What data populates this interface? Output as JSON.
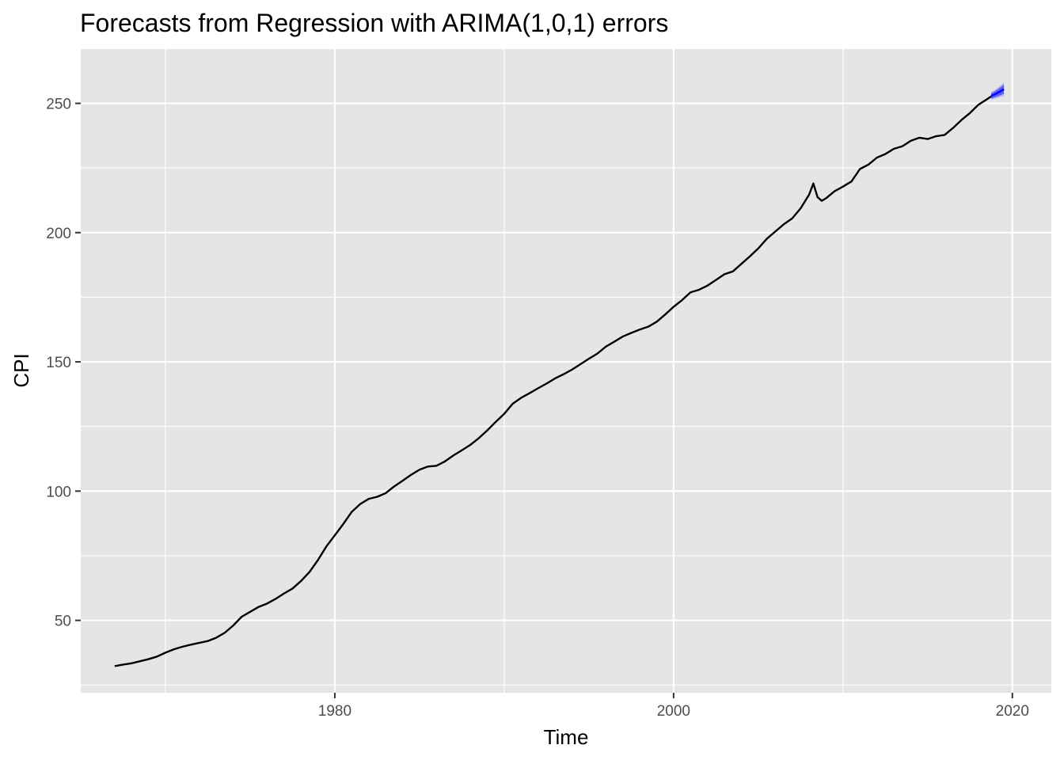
{
  "chart_data": {
    "type": "line",
    "title": "Forecasts from Regression with ARIMA(1,0,1) errors",
    "xlabel": "Time",
    "ylabel": "CPI",
    "xlim": [
      1965.0,
      2022.3
    ],
    "ylim": [
      22,
      271
    ],
    "x_ticks": [
      1980,
      2000,
      2020
    ],
    "x_minor_ticks": [
      1970,
      1990,
      2010
    ],
    "y_ticks": [
      50,
      100,
      150,
      200,
      250
    ],
    "y_minor_ticks": [
      25,
      75,
      125,
      175,
      225
    ],
    "x_tick_labels": [
      "1980",
      "2000",
      "2020"
    ],
    "y_tick_labels": [
      "50",
      "100",
      "150",
      "200",
      "250"
    ],
    "grid": true,
    "legend": "none",
    "colors": {
      "panel": "#e5e5e5",
      "grid": "#ffffff",
      "series": "#000000",
      "forecast": "#0000ff",
      "pi80": "#5d5df0",
      "pi95": "#b8b8f7"
    },
    "series": [
      {
        "x": [
          1967.0,
          1967.5,
          1968.0,
          1968.5,
          1969.0,
          1969.5,
          1970.0,
          1970.5,
          1971.0,
          1971.5,
          1972.0,
          1972.5,
          1973.0,
          1973.5,
          1974.0,
          1974.5,
          1975.0,
          1975.5,
          1976.0,
          1976.5,
          1977.0,
          1977.5,
          1978.0,
          1978.5,
          1979.0,
          1979.5,
          1980.0,
          1980.5,
          1981.0,
          1981.5,
          1982.0,
          1982.5,
          1983.0,
          1983.5,
          1984.0,
          1984.5,
          1985.0,
          1985.5,
          1986.0,
          1986.5,
          1987.0,
          1987.5,
          1988.0,
          1988.5,
          1989.0,
          1989.5,
          1990.0,
          1990.5,
          1991.0,
          1991.5,
          1992.0,
          1992.5,
          1993.0,
          1993.5,
          1994.0,
          1994.5,
          1995.0,
          1995.5,
          1996.0,
          1996.5,
          1997.0,
          1997.5,
          1998.0,
          1998.5,
          1999.0,
          1999.5,
          2000.0,
          2000.5,
          2001.0,
          2001.5,
          2002.0,
          2002.5,
          2003.0,
          2003.5,
          2004.0,
          2004.5,
          2005.0,
          2005.5,
          2006.0,
          2006.5,
          2007.0,
          2007.5,
          2008.0,
          2008.25,
          2008.5,
          2008.75,
          2009.0,
          2009.5,
          2010.0,
          2010.5,
          2011.0,
          2011.5,
          2012.0,
          2012.5,
          2013.0,
          2013.5,
          2014.0,
          2014.5,
          2015.0,
          2015.5,
          2016.0,
          2016.5,
          2017.0,
          2017.5,
          2018.0,
          2018.5,
          2018.75
        ],
        "values": [
          32.3,
          32.9,
          33.4,
          34.2,
          35.0,
          36.0,
          37.5,
          38.8,
          39.8,
          40.6,
          41.3,
          42.0,
          43.3,
          45.2,
          48.0,
          51.4,
          53.3,
          55.2,
          56.5,
          58.3,
          60.4,
          62.3,
          65.2,
          68.7,
          73.3,
          78.6,
          82.9,
          87.3,
          92.0,
          95.0,
          97.0,
          97.8,
          99.2,
          101.8,
          104.0,
          106.3,
          108.3,
          109.5,
          109.8,
          111.5,
          113.8,
          115.8,
          117.9,
          120.5,
          123.5,
          126.8,
          129.9,
          133.8,
          136.1,
          137.9,
          139.8,
          141.6,
          143.6,
          145.2,
          147.0,
          149.1,
          151.2,
          153.2,
          155.9,
          157.8,
          159.8,
          161.2,
          162.5,
          163.6,
          165.5,
          168.3,
          171.3,
          173.9,
          176.9,
          177.9,
          179.5,
          181.7,
          183.9,
          185.0,
          187.9,
          190.8,
          193.9,
          197.6,
          200.4,
          203.2,
          205.5,
          209.4,
          214.7,
          219.0,
          213.7,
          212.3,
          213.3,
          216.0,
          217.8,
          219.8,
          224.6,
          226.3,
          229.0,
          230.4,
          232.4,
          233.4,
          235.5,
          236.7,
          236.2,
          237.3,
          237.8,
          240.5,
          243.6,
          246.3,
          249.5,
          251.6,
          252.7
        ]
      },
      {
        "x": [
          2018.75,
          2019.0,
          2019.25,
          2019.5
        ],
        "values": [
          252.9,
          253.6,
          254.5,
          255.5
        ],
        "pi80_low": [
          251.9,
          252.4,
          253.0,
          253.7
        ],
        "pi80_high": [
          253.9,
          254.8,
          256.0,
          257.3
        ],
        "pi95_low": [
          251.4,
          251.8,
          252.3,
          252.8
        ],
        "pi95_high": [
          254.4,
          255.4,
          256.7,
          258.2
        ]
      }
    ]
  }
}
